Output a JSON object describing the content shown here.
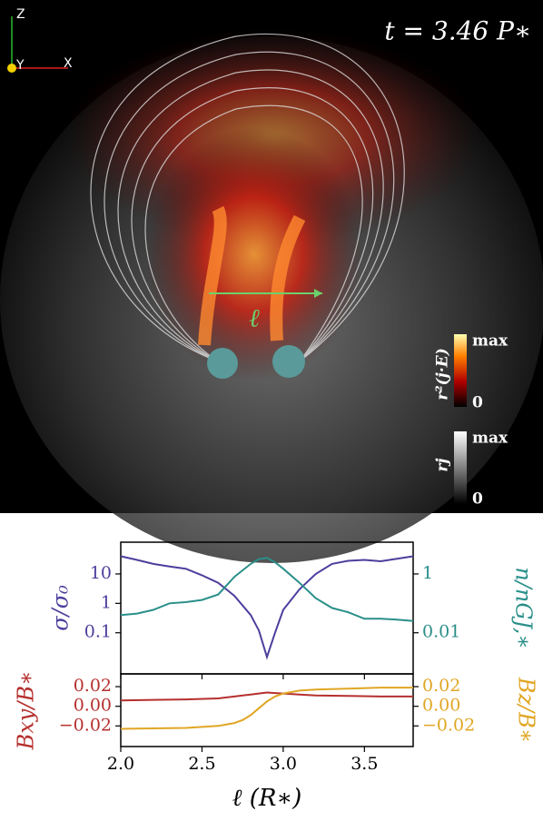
{
  "image": {
    "axes": [
      "Z",
      "Y",
      "X"
    ],
    "time_label": "t = 3.46 P∗",
    "path_label": "ℓ",
    "colorbars": [
      {
        "label": "r²(j·E)",
        "max": "max",
        "min": "0"
      },
      {
        "label": "rj",
        "max": "max",
        "min": "0"
      }
    ]
  },
  "chart_data": [
    {
      "type": "line",
      "ylabel": "σ/σ₀",
      "y2label": "n/nGJ,∗",
      "x": [
        2.0,
        2.1,
        2.2,
        2.3,
        2.4,
        2.5,
        2.6,
        2.7,
        2.8,
        2.85,
        2.9,
        2.95,
        3.0,
        3.1,
        3.2,
        3.3,
        3.4,
        3.5,
        3.6,
        3.7,
        3.8
      ],
      "series": [
        {
          "name": "σ/σ₀",
          "color": "#4b3f9c",
          "values": [
            40,
            30,
            22,
            18,
            15,
            9,
            5,
            1.8,
            0.4,
            0.12,
            0.015,
            0.1,
            0.6,
            3,
            10,
            22,
            28,
            30,
            27,
            33,
            40
          ]
        },
        {
          "name": "n/nGJ,∗",
          "color": "#2a8f8a",
          "axis": "y2",
          "values": [
            0.04,
            0.045,
            0.06,
            0.1,
            0.11,
            0.13,
            0.2,
            0.8,
            2.2,
            3.2,
            3.5,
            2.5,
            1.5,
            0.5,
            0.15,
            0.07,
            0.05,
            0.03,
            0.03,
            0.028,
            0.025
          ]
        }
      ],
      "xlim": [
        2.0,
        3.8
      ],
      "ylog": true,
      "ylim": [
        0.004,
        120
      ],
      "yticks": [
        0.1,
        1,
        10
      ],
      "y2log": true,
      "y2lim": [
        0.0004,
        12
      ],
      "y2ticks": [
        0.01,
        1
      ]
    },
    {
      "type": "line",
      "ylabel": "Bxy/B∗",
      "y2label": "Bz/B∗",
      "xlabel": "ℓ (R∗)",
      "x": [
        2.0,
        2.2,
        2.4,
        2.6,
        2.7,
        2.75,
        2.8,
        2.85,
        2.9,
        2.95,
        3.0,
        3.1,
        3.2,
        3.4,
        3.6,
        3.8
      ],
      "series": [
        {
          "name": "Bxy/B∗",
          "color": "#b5302e",
          "values": [
            0.006,
            0.0065,
            0.007,
            0.008,
            0.01,
            0.011,
            0.012,
            0.013,
            0.014,
            0.0135,
            0.013,
            0.012,
            0.011,
            0.0105,
            0.01,
            0.01
          ]
        },
        {
          "name": "Bz/B∗",
          "color": "#e0a624",
          "axis": "y2",
          "values": [
            -0.023,
            -0.0225,
            -0.022,
            -0.02,
            -0.017,
            -0.014,
            -0.009,
            -0.002,
            0.005,
            0.01,
            0.013,
            0.016,
            0.017,
            0.018,
            0.019,
            0.019
          ]
        }
      ],
      "xlim": [
        2.0,
        3.8
      ],
      "xticks": [
        {
          "value": 2.0,
          "label": "2.0"
        },
        {
          "value": 2.5,
          "label": "2.5"
        },
        {
          "value": 3.0,
          "label": "3.0"
        },
        {
          "value": 3.5,
          "label": "3.5"
        }
      ],
      "ylim": [
        -0.041,
        0.033
      ],
      "yticks": [
        {
          "value": -0.02,
          "label": "−0.02"
        },
        {
          "value": 0,
          "label": "0.00"
        },
        {
          "value": 0.02,
          "label": "0.02"
        }
      ],
      "y2lim": [
        -0.041,
        0.033
      ],
      "y2ticks": [
        {
          "value": -0.02,
          "label": "−0.02"
        },
        {
          "value": 0,
          "label": "0.00"
        },
        {
          "value": 0.02,
          "label": "0.02"
        }
      ]
    }
  ]
}
